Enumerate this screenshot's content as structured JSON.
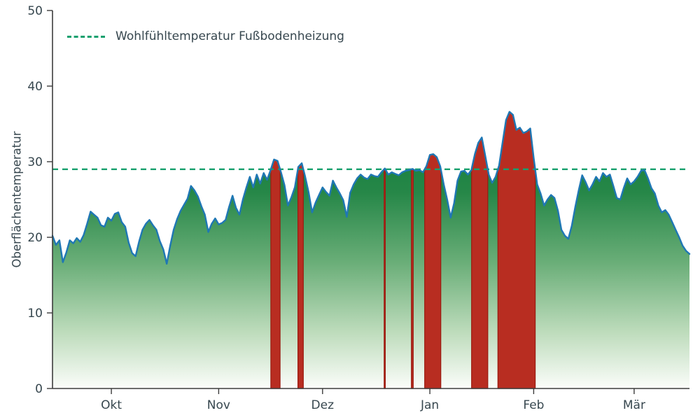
{
  "chart_data": {
    "type": "area",
    "title": "",
    "xlabel": "",
    "ylabel": "Oberflächentemperatur",
    "ylim": [
      0,
      50
    ],
    "yticks": [
      0,
      10,
      20,
      30,
      40,
      50
    ],
    "x_description": "daily index, 0 = late September to 184 = late March",
    "xticks": [
      {
        "label": "Okt",
        "day": 17
      },
      {
        "label": "Nov",
        "day": 48
      },
      {
        "label": "Dez",
        "day": 78
      },
      {
        "label": "Jan",
        "day": 109
      },
      {
        "label": "Feb",
        "day": 139
      },
      {
        "label": "Mär",
        "day": 168
      }
    ],
    "threshold": {
      "value": 29,
      "label": "Wohlfühltemperatur Fußbodenheizung",
      "color": "#17a06e"
    },
    "legend_position": "upper-left",
    "grid": false,
    "series": [
      {
        "name": "Oberflächentemperatur",
        "y": [
          20.2,
          19.0,
          19.6,
          16.7,
          18.0,
          19.6,
          19.2,
          19.9,
          19.4,
          20.3,
          21.8,
          23.4,
          23.0,
          22.6,
          21.6,
          21.4,
          22.6,
          22.2,
          23.1,
          23.3,
          22.0,
          21.4,
          19.3,
          17.9,
          17.5,
          19.4,
          21.0,
          21.8,
          22.3,
          21.6,
          21.0,
          19.5,
          18.4,
          16.5,
          18.9,
          21.0,
          22.4,
          23.5,
          24.3,
          25.1,
          26.8,
          26.2,
          25.4,
          24.1,
          23.0,
          20.7,
          21.8,
          22.5,
          21.7,
          21.9,
          22.3,
          24.0,
          25.5,
          23.9,
          23.0,
          25.0,
          26.6,
          28.0,
          26.6,
          28.3,
          27.1,
          28.5,
          27.6,
          28.9,
          30.3,
          30.1,
          28.6,
          26.9,
          24.2,
          25.3,
          26.6,
          29.3,
          29.8,
          28.0,
          25.9,
          23.3,
          24.6,
          25.6,
          26.6,
          26.0,
          25.5,
          27.5,
          26.6,
          25.8,
          24.9,
          22.7,
          25.9,
          27.0,
          27.8,
          28.3,
          27.9,
          27.7,
          28.3,
          28.1,
          28.0,
          28.6,
          29.1,
          28.3,
          28.6,
          28.4,
          28.2,
          28.6,
          28.8,
          28.9,
          29.05,
          28.8,
          28.9,
          28.6,
          29.4,
          30.9,
          31.0,
          30.6,
          29.4,
          27.0,
          25.0,
          22.6,
          24.5,
          27.5,
          28.7,
          28.8,
          28.3,
          28.9,
          31.0,
          32.5,
          33.2,
          30.8,
          28.3,
          27.2,
          28.0,
          29.5,
          32.5,
          35.5,
          36.6,
          36.2,
          34.2,
          34.5,
          33.8,
          34.0,
          34.4,
          30.5,
          27.0,
          25.8,
          24.2,
          25.0,
          25.6,
          25.2,
          23.5,
          21.0,
          20.2,
          19.8,
          21.5,
          24.0,
          26.2,
          28.2,
          27.3,
          26.2,
          27.0,
          28.0,
          27.4,
          28.5,
          28.0,
          28.3,
          26.8,
          25.2,
          25.0,
          26.5,
          27.8,
          27.0,
          27.4,
          28.0,
          28.8,
          28.9,
          27.8,
          26.5,
          25.8,
          24.2,
          23.3,
          23.6,
          23.0,
          22.0,
          21.0,
          20.0,
          18.9,
          18.2,
          17.8
        ]
      }
    ],
    "colors": {
      "line": "#1f77b4",
      "exceed_fill": "#b82d21",
      "exceed_edge": "#9a1b10",
      "spine": "#3c3c3c",
      "text": "#37474f",
      "gradient": [
        "#0b7a37",
        "#268748",
        "#6aae78",
        "#bedcbc",
        "#fbfdfa"
      ]
    }
  }
}
